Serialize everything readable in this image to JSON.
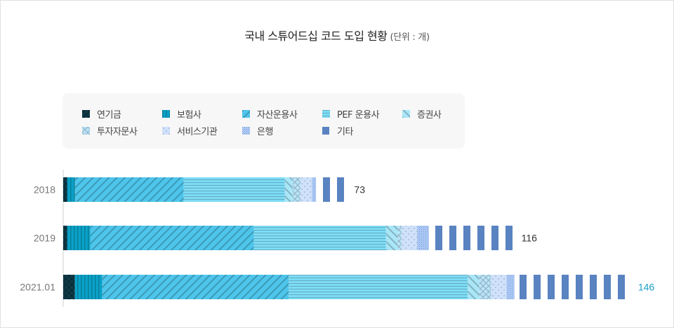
{
  "chart_data": {
    "type": "bar",
    "orientation": "horizontal",
    "stacked": true,
    "title": "국내 스튜어드십 코드 도입 현황",
    "unit": "(단위 : 개)",
    "categories": [
      "2018",
      "2019",
      "2021.01"
    ],
    "totals": [
      "73",
      "116",
      "146"
    ],
    "highlight_total_color": "#1a9fc9",
    "series": [
      {
        "name": "연기금",
        "values": [
          1,
          1,
          3
        ],
        "color": "#0e3b48",
        "pattern": "checker"
      },
      {
        "name": "보험사",
        "values": [
          2,
          6,
          7
        ],
        "color": "#0aa2c8",
        "pattern": "vlines"
      },
      {
        "name": "자산운용사",
        "values": [
          28,
          42,
          48
        ],
        "color": "#4ec6ec",
        "pattern": "diag"
      },
      {
        "name": "PEF 운용사",
        "values": [
          26,
          34,
          46
        ],
        "color": "#7ddcf6",
        "pattern": "hlines"
      },
      {
        "name": "증권사",
        "values": [
          2,
          3,
          3
        ],
        "color": "#a9e6f8",
        "pattern": "diag2"
      },
      {
        "name": "투자자문사",
        "values": [
          2,
          1,
          3
        ],
        "color": "#b9e3f8",
        "pattern": "cross"
      },
      {
        "name": "서비스기관",
        "values": [
          3,
          4,
          4
        ],
        "color": "#cfe1fb",
        "pattern": "dots"
      },
      {
        "name": "은행",
        "values": [
          1,
          3,
          2
        ],
        "color": "#a9c7f6",
        "pattern": "grid"
      },
      {
        "name": "기타",
        "values": [
          8,
          22,
          30
        ],
        "color": "#72a8f7",
        "pattern": "vband"
      }
    ]
  }
}
